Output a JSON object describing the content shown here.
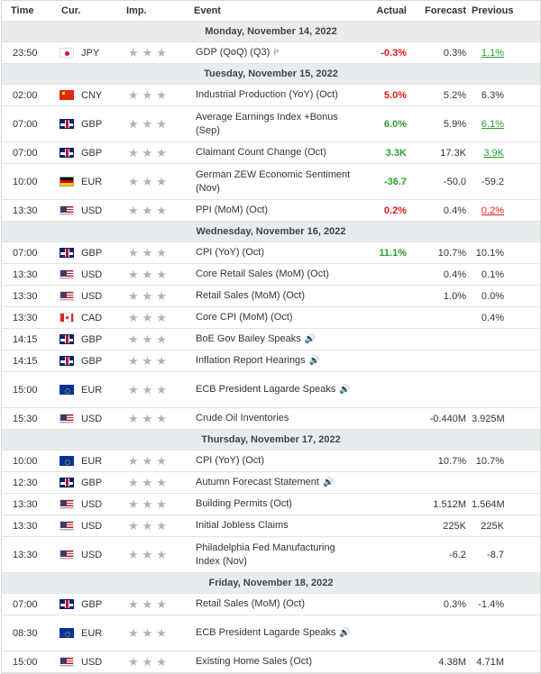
{
  "headers": {
    "time": "Time",
    "cur": "Cur.",
    "imp": "Imp.",
    "event": "Event",
    "actual": "Actual",
    "forecast": "Forecast",
    "previous": "Previous"
  },
  "days": [
    {
      "label": "Monday, November 14, 2022",
      "rows": [
        {
          "time": "23:50",
          "flag": "jpy",
          "cur": "JPY",
          "stars": "★★★",
          "event": "GDP (QoQ) (Q3)",
          "p": "P",
          "actual": "-0.3%",
          "actual_color": "red",
          "forecast": "0.3%",
          "previous": "1.1%",
          "prev_style": "prevgreen"
        }
      ]
    },
    {
      "label": "Tuesday, November 15, 2022",
      "rows": [
        {
          "time": "02:00",
          "flag": "cny",
          "cur": "CNY",
          "stars": "★★★",
          "event": "Industrial Production (YoY) (Oct)",
          "actual": "5.0%",
          "actual_color": "red",
          "forecast": "5.2%",
          "previous": "6.3%"
        },
        {
          "time": "07:00",
          "flag": "gbp",
          "cur": "GBP",
          "stars": "★★★",
          "event": "Average Earnings Index +Bonus (Sep)",
          "actual": "6.0%",
          "actual_color": "green",
          "forecast": "5.9%",
          "previous": "6.1%",
          "prev_style": "prevgreen",
          "tall": true
        },
        {
          "time": "07:00",
          "flag": "gbp",
          "cur": "GBP",
          "stars": "★★★",
          "event": "Claimant Count Change (Oct)",
          "actual": "3.3K",
          "actual_color": "green",
          "forecast": "17.3K",
          "previous": "3.9K",
          "prev_style": "prevgreen"
        },
        {
          "time": "10:00",
          "flag": "eurde",
          "cur": "EUR",
          "stars": "★★★",
          "event": "German ZEW Economic Sentiment (Nov)",
          "actual": "-36.7",
          "actual_color": "green",
          "forecast": "-50.0",
          "previous": "-59.2",
          "tall": true
        },
        {
          "time": "13:30",
          "flag": "usd",
          "cur": "USD",
          "stars": "★★★",
          "event": "PPI (MoM) (Oct)",
          "actual": "0.2%",
          "actual_color": "red",
          "forecast": "0.4%",
          "previous": "0.2%",
          "prev_style": "prevred"
        }
      ]
    },
    {
      "label": "Wednesday, November 16, 2022",
      "rows": [
        {
          "time": "07:00",
          "flag": "gbp",
          "cur": "GBP",
          "stars": "★★★",
          "event": "CPI (YoY) (Oct)",
          "actual": "11.1%",
          "actual_color": "green",
          "forecast": "10.7%",
          "previous": "10.1%"
        },
        {
          "time": "13:30",
          "flag": "usd",
          "cur": "USD",
          "stars": "★★★",
          "event": "Core Retail Sales (MoM) (Oct)",
          "actual": "",
          "forecast": "0.4%",
          "previous": "0.1%"
        },
        {
          "time": "13:30",
          "flag": "usd",
          "cur": "USD",
          "stars": "★★★",
          "event": "Retail Sales (MoM) (Oct)",
          "actual": "",
          "forecast": "1.0%",
          "previous": "0.0%"
        },
        {
          "time": "13:30",
          "flag": "cad",
          "cur": "CAD",
          "stars": "★★★",
          "event": "Core CPI (MoM) (Oct)",
          "actual": "",
          "forecast": "",
          "previous": "0.4%"
        },
        {
          "time": "14:15",
          "flag": "gbp",
          "cur": "GBP",
          "stars": "★★★",
          "event": "BoE Gov Bailey Speaks",
          "speaker": true,
          "actual": "",
          "forecast": "",
          "previous": ""
        },
        {
          "time": "14:15",
          "flag": "gbp",
          "cur": "GBP",
          "stars": "★★★",
          "event": "Inflation Report Hearings",
          "speaker": true,
          "actual": "",
          "forecast": "",
          "previous": ""
        },
        {
          "time": "15:00",
          "flag": "eur",
          "cur": "EUR",
          "stars": "★★★",
          "event": "ECB President Lagarde Speaks",
          "speaker": true,
          "actual": "",
          "forecast": "",
          "previous": "",
          "tall": true
        },
        {
          "time": "15:30",
          "flag": "usd",
          "cur": "USD",
          "stars": "★★★",
          "event": "Crude Oil Inventories",
          "actual": "",
          "forecast": "-0.440M",
          "previous": "3.925M"
        }
      ]
    },
    {
      "label": "Thursday, November 17, 2022",
      "rows": [
        {
          "time": "10:00",
          "flag": "eur",
          "cur": "EUR",
          "stars": "★★★",
          "event": "CPI (YoY) (Oct)",
          "actual": "",
          "forecast": "10.7%",
          "previous": "10.7%"
        },
        {
          "time": "12:30",
          "flag": "gbp",
          "cur": "GBP",
          "stars": "★★★",
          "event": "Autumn Forecast Statement",
          "speaker": true,
          "actual": "",
          "forecast": "",
          "previous": ""
        },
        {
          "time": "13:30",
          "flag": "usd",
          "cur": "USD",
          "stars": "★★★",
          "event": "Building Permits (Oct)",
          "actual": "",
          "forecast": "1.512M",
          "previous": "1.564M"
        },
        {
          "time": "13:30",
          "flag": "usd",
          "cur": "USD",
          "stars": "★★★",
          "event": "Initial Jobless Claims",
          "actual": "",
          "forecast": "225K",
          "previous": "225K"
        },
        {
          "time": "13:30",
          "flag": "usd",
          "cur": "USD",
          "stars": "★★★",
          "event": "Philadelphia Fed Manufacturing Index (Nov)",
          "actual": "",
          "forecast": "-6.2",
          "previous": "-8.7",
          "tall": true
        }
      ]
    },
    {
      "label": "Friday, November 18, 2022",
      "rows": [
        {
          "time": "07:00",
          "flag": "gbp",
          "cur": "GBP",
          "stars": "★★★",
          "event": "Retail Sales (MoM) (Oct)",
          "actual": "",
          "forecast": "0.3%",
          "previous": "-1.4%"
        },
        {
          "time": "08:30",
          "flag": "eur",
          "cur": "EUR",
          "stars": "★★★",
          "event": "ECB President Lagarde Speaks",
          "speaker": true,
          "actual": "",
          "forecast": "",
          "previous": "",
          "tall": true
        },
        {
          "time": "15:00",
          "flag": "usd",
          "cur": "USD",
          "stars": "★★★",
          "event": "Existing Home Sales (Oct)",
          "actual": "",
          "forecast": "4.38M",
          "previous": "4.71M"
        }
      ]
    }
  ]
}
